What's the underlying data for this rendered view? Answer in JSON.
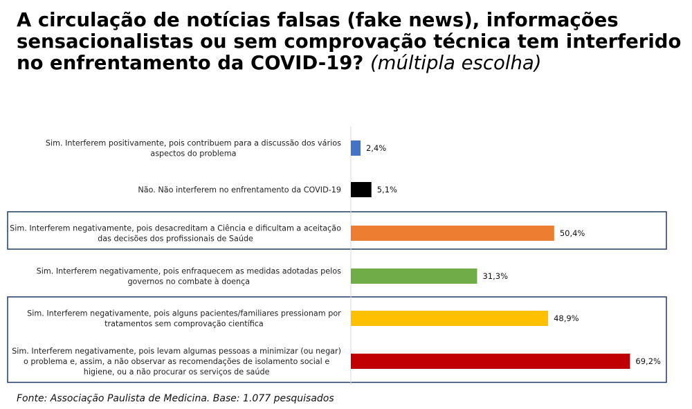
{
  "title": {
    "main": "A circulação de notícias falsas (fake news), informações sensacionalistas ou sem comprovação técnica tem interferido no enfrentamento da COVID-19?",
    "note": "(múltipla escolha)"
  },
  "chart_data": {
    "type": "bar",
    "orientation": "horizontal",
    "categories": [
      [
        "Sim. Interferem positivamente, pois contribuem para a discussão dos vários",
        "aspectos do problema"
      ],
      [
        "Não. Não interferem no enfrentamento da COVID-19"
      ],
      [
        "Sim. Interferem negativamente, pois desacreditam a Ciência e dificultam a aceitação",
        "das decisões dos profissionais de Saúde"
      ],
      [
        "Sim. Interferem negativamente, pois enfraquecem as medidas adotadas pelos",
        "governos no combate à doença"
      ],
      [
        "Sim. Interferem negativamente, pois alguns pacientes/familiares pressionam por",
        "tratamentos sem comprovação científica"
      ],
      [
        "Sim. Interferem negativamente, pois levam algumas pessoas a minimizar (ou negar)",
        "o problema e, assim, a não observar as recomendações de isolamento social e",
        "higiene, ou a não procurar os serviços de saúde"
      ]
    ],
    "values": [
      2.4,
      5.1,
      50.4,
      31.3,
      48.9,
      69.2
    ],
    "value_labels": [
      "2,4%",
      "5,1%",
      "50,4%",
      "31,3%",
      "48,9%",
      "69,2%"
    ],
    "colors": [
      "#4472c4",
      "#000000",
      "#ed7d31",
      "#70ad47",
      "#ffc000",
      "#c00000"
    ],
    "highlight_groups": [
      [
        2
      ],
      [
        4,
        5
      ]
    ],
    "highlight_color": "#1f3864",
    "grid": false,
    "legend": "none"
  },
  "source": "Fonte: Associação Paulista de Medicina. Base: 1.077 pesquisados"
}
